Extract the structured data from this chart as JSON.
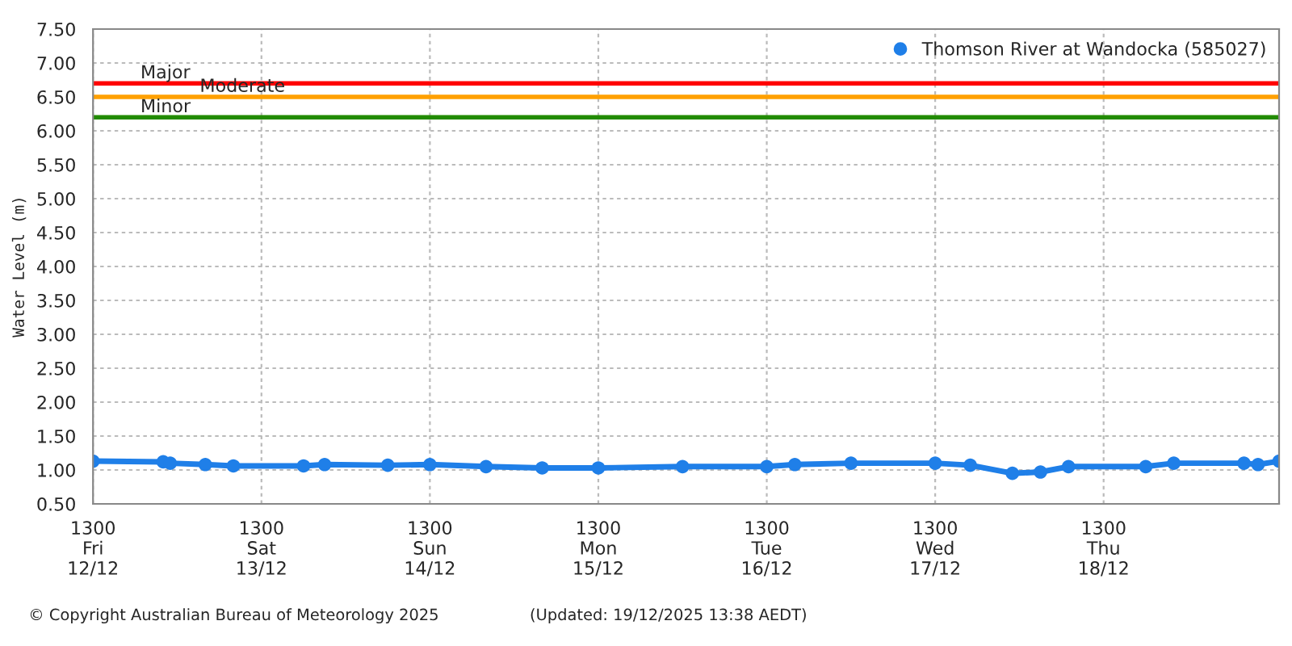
{
  "chart_data": {
    "type": "line",
    "ylabel": "Water Level (m)",
    "x": [
      "2025-12-12T13:00",
      "2025-12-12T23:00",
      "2025-12-13T00:00",
      "2025-12-13T05:00",
      "2025-12-13T09:00",
      "2025-12-13T19:00",
      "2025-12-13T22:00",
      "2025-12-14T07:00",
      "2025-12-14T13:00",
      "2025-12-14T21:00",
      "2025-12-15T05:00",
      "2025-12-15T13:00",
      "2025-12-16T01:00",
      "2025-12-16T13:00",
      "2025-12-16T17:00",
      "2025-12-17T01:00",
      "2025-12-17T13:00",
      "2025-12-17T18:00",
      "2025-12-18T00:00",
      "2025-12-18T04:00",
      "2025-12-18T08:00",
      "2025-12-18T19:00",
      "2025-12-18T23:00",
      "2025-12-19T09:00",
      "2025-12-19T11:00",
      "2025-12-19T14:00"
    ],
    "series": [
      {
        "name": "Thomson River at Wandocka (585027)",
        "color": "#1f7fe8",
        "values": [
          1.13,
          1.12,
          1.1,
          1.08,
          1.06,
          1.06,
          1.08,
          1.07,
          1.08,
          1.05,
          1.03,
          1.03,
          1.05,
          1.05,
          1.08,
          1.1,
          1.1,
          1.07,
          0.95,
          0.97,
          1.05,
          1.05,
          1.1,
          1.1,
          1.08,
          1.13
        ]
      }
    ],
    "xlim": [
      "2025-12-12T13:00",
      "2025-12-19T14:00"
    ],
    "xticks": [
      {
        "value": "2025-12-12T13:00",
        "label": "1300\nFri\n12/12"
      },
      {
        "value": "2025-12-13T13:00",
        "label": "1300\nSat\n13/12"
      },
      {
        "value": "2025-12-14T13:00",
        "label": "1300\nSun\n14/12"
      },
      {
        "value": "2025-12-15T13:00",
        "label": "1300\nMon\n15/12"
      },
      {
        "value": "2025-12-16T13:00",
        "label": "1300\nTue\n16/12"
      },
      {
        "value": "2025-12-17T13:00",
        "label": "1300\nWed\n17/12"
      },
      {
        "value": "2025-12-18T13:00",
        "label": "1300\nThu\n18/12"
      }
    ],
    "ylim": [
      0.5,
      7.5
    ],
    "yticks": [
      {
        "value": 0.5,
        "label": "0.50"
      },
      {
        "value": 1.0,
        "label": "1.00"
      },
      {
        "value": 1.5,
        "label": "1.50"
      },
      {
        "value": 2.0,
        "label": "2.00"
      },
      {
        "value": 2.5,
        "label": "2.50"
      },
      {
        "value": 3.0,
        "label": "3.00"
      },
      {
        "value": 3.5,
        "label": "3.50"
      },
      {
        "value": 4.0,
        "label": "4.00"
      },
      {
        "value": 4.5,
        "label": "4.50"
      },
      {
        "value": 5.0,
        "label": "5.00"
      },
      {
        "value": 5.5,
        "label": "5.50"
      },
      {
        "value": 6.0,
        "label": "6.00"
      },
      {
        "value": 6.5,
        "label": "6.50"
      },
      {
        "value": 7.0,
        "label": "7.00"
      },
      {
        "value": 7.5,
        "label": "7.50"
      }
    ],
    "ref_lines": [
      {
        "axis": "y",
        "value": 6.7,
        "label": "Major",
        "color": "#ff0000"
      },
      {
        "axis": "y",
        "value": 6.5,
        "label": "Moderate",
        "color": "#ffa000"
      },
      {
        "axis": "y",
        "value": 6.2,
        "label": "Minor",
        "color": "#228b00"
      }
    ],
    "annotations": [
      "© Copyright Australian Bureau of Meteorology 2025",
      "(Updated: 19/12/2025 13:38 AEDT)"
    ],
    "grid": true,
    "legend": "top right",
    "marker": "circle",
    "line_style": "solid"
  }
}
